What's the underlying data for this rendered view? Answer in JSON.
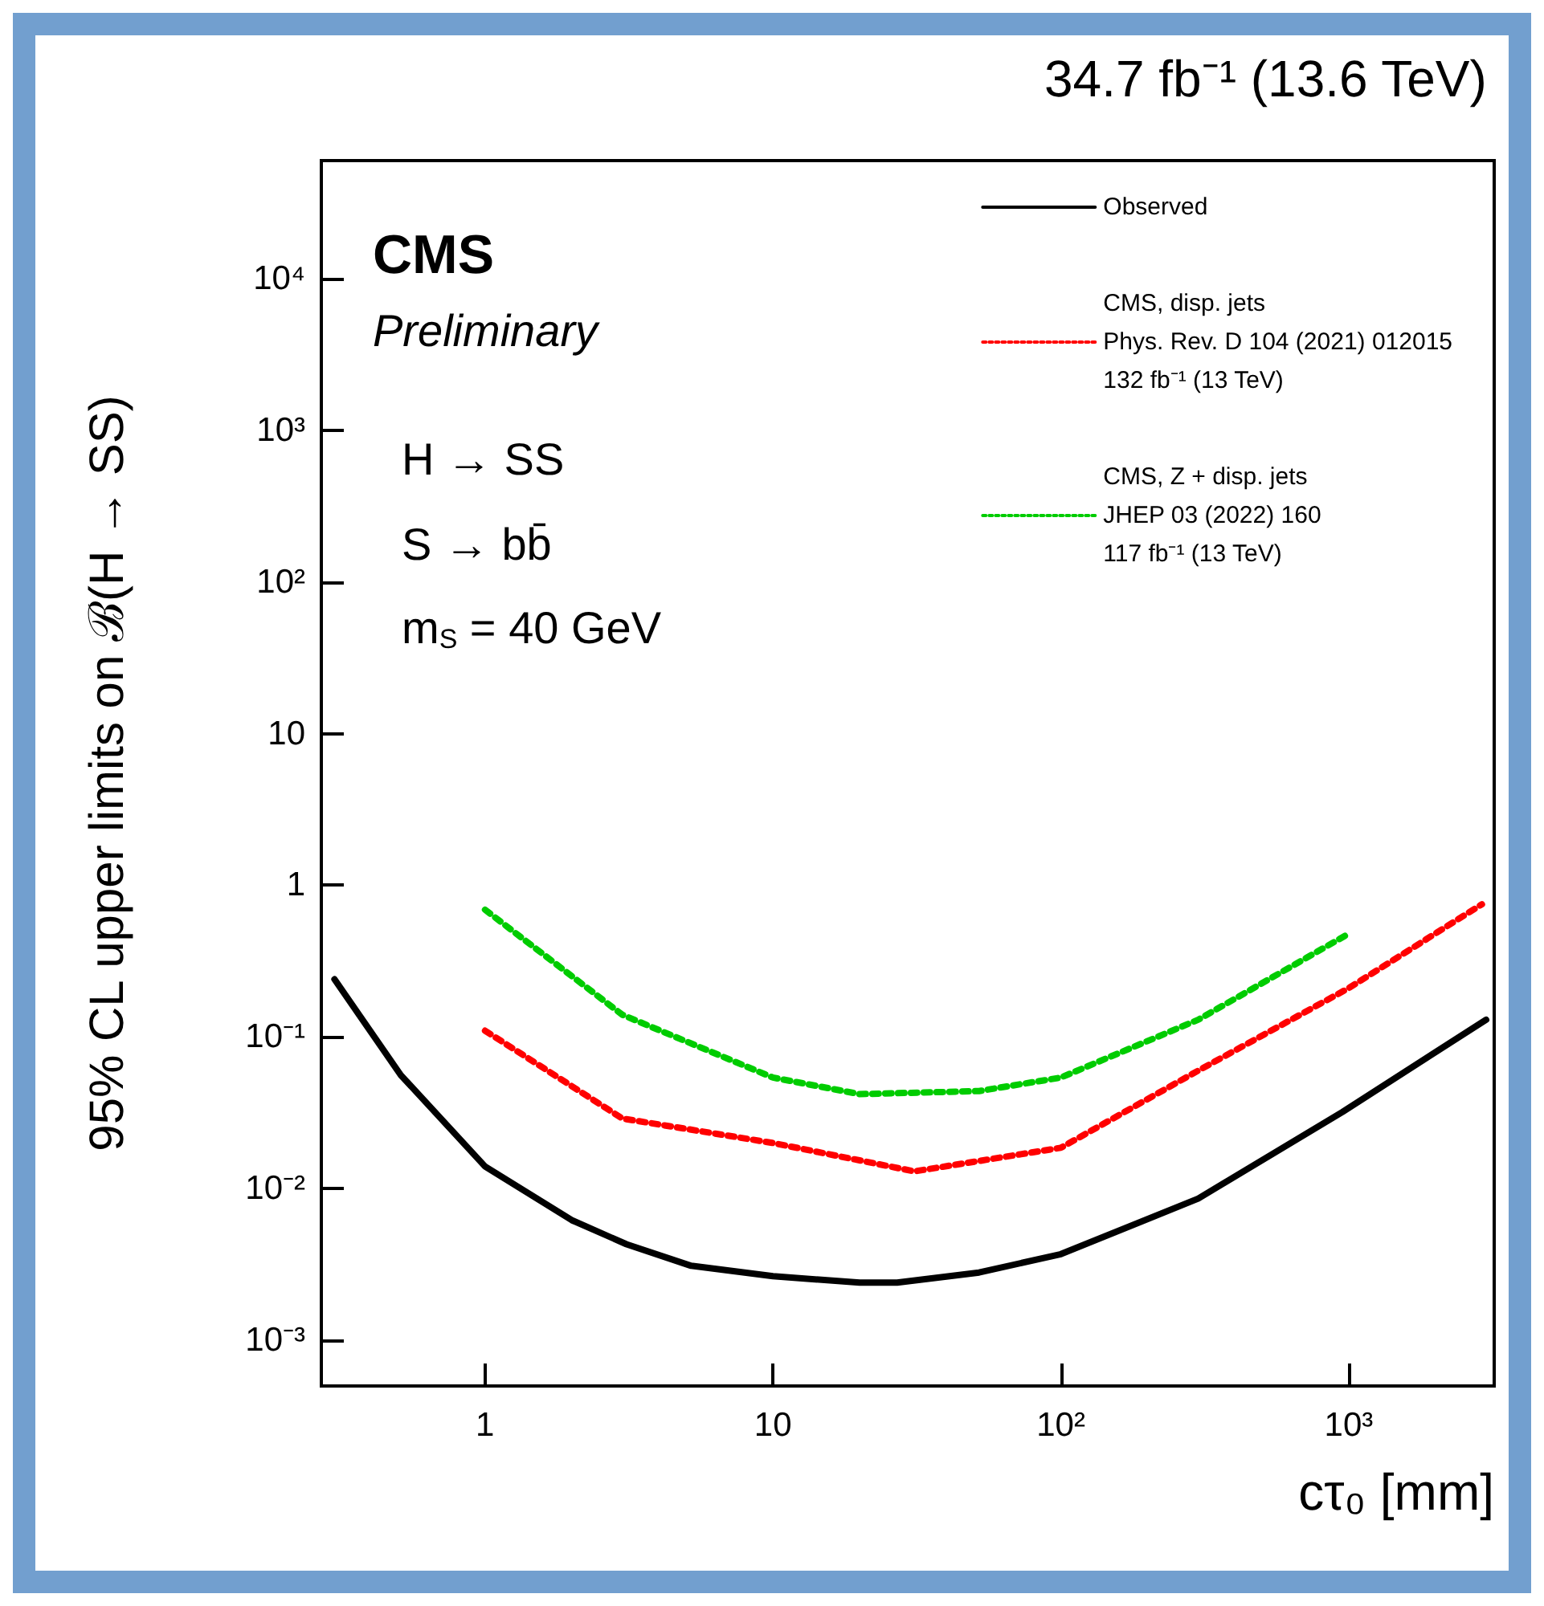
{
  "chart_data": {
    "type": "line",
    "title": "34.7 fb⁻¹ (13.6 TeV)",
    "xlabel": "cτ₀ [mm]",
    "ylabel": "95% CL upper limits on ℬ(H → SS)",
    "annotations": [
      "CMS",
      "Preliminary",
      "H → SS",
      "S → bb̄",
      "m$_{S}$ = 40 GeV"
    ],
    "log": "xy",
    "xlim": [
      0.27,
      3200
    ],
    "ylim": [
      0.0005,
      60000
    ],
    "xticks": [
      1,
      10,
      {
        "value": 100,
        "label": "10²"
      },
      {
        "value": 1000,
        "label": "10³"
      }
    ],
    "yticks": [
      {
        "value": 0.001,
        "label": "10⁻³"
      },
      {
        "value": 0.01,
        "label": "10⁻²"
      },
      {
        "value": 0.1,
        "label": "10⁻¹"
      },
      1,
      10,
      {
        "value": 100,
        "label": "10²"
      },
      {
        "value": 1000,
        "label": "10³"
      },
      {
        "value": 10000,
        "label": "10⁴"
      }
    ],
    "grid": false,
    "legend": "top right",
    "marker": "none",
    "series": [
      {
        "name": "Observed",
        "color": "#000000",
        "line_style": "solid",
        "x": [
          0.3,
          0.51,
          1,
          2,
          3.1,
          5.2,
          10,
          20,
          27,
          52,
          100,
          300,
          950,
          3000
        ],
        "values": [
          0.24,
          0.056,
          0.014,
          0.0062,
          0.0043,
          0.0031,
          0.00265,
          0.0024,
          0.0024,
          0.0028,
          0.0037,
          0.0086,
          0.032,
          0.13
        ]
      },
      {
        "name": "CMS, disp. jets\nPhys. Rev. D 104 (2021) 012015\n132 fb⁻¹ (13 TeV)",
        "color": "#ff0000",
        "line_style": "dotted",
        "x": [
          1,
          3,
          10,
          31,
          100,
          300,
          1000,
          2900
        ],
        "values": [
          0.11,
          0.029,
          0.02,
          0.013,
          0.0186,
          0.06,
          0.21,
          0.75
        ]
      },
      {
        "name": "CMS, Z + disp. jets\nJHEP 03 (2022) 160\n117 fb⁻¹ (13 TeV)",
        "color": "#00cc00",
        "line_style": "dotted",
        "x": [
          1,
          3,
          10,
          20,
          52,
          100,
          300,
          1000
        ],
        "values": [
          0.69,
          0.14,
          0.054,
          0.042,
          0.044,
          0.054,
          0.13,
          0.48
        ]
      }
    ]
  }
}
